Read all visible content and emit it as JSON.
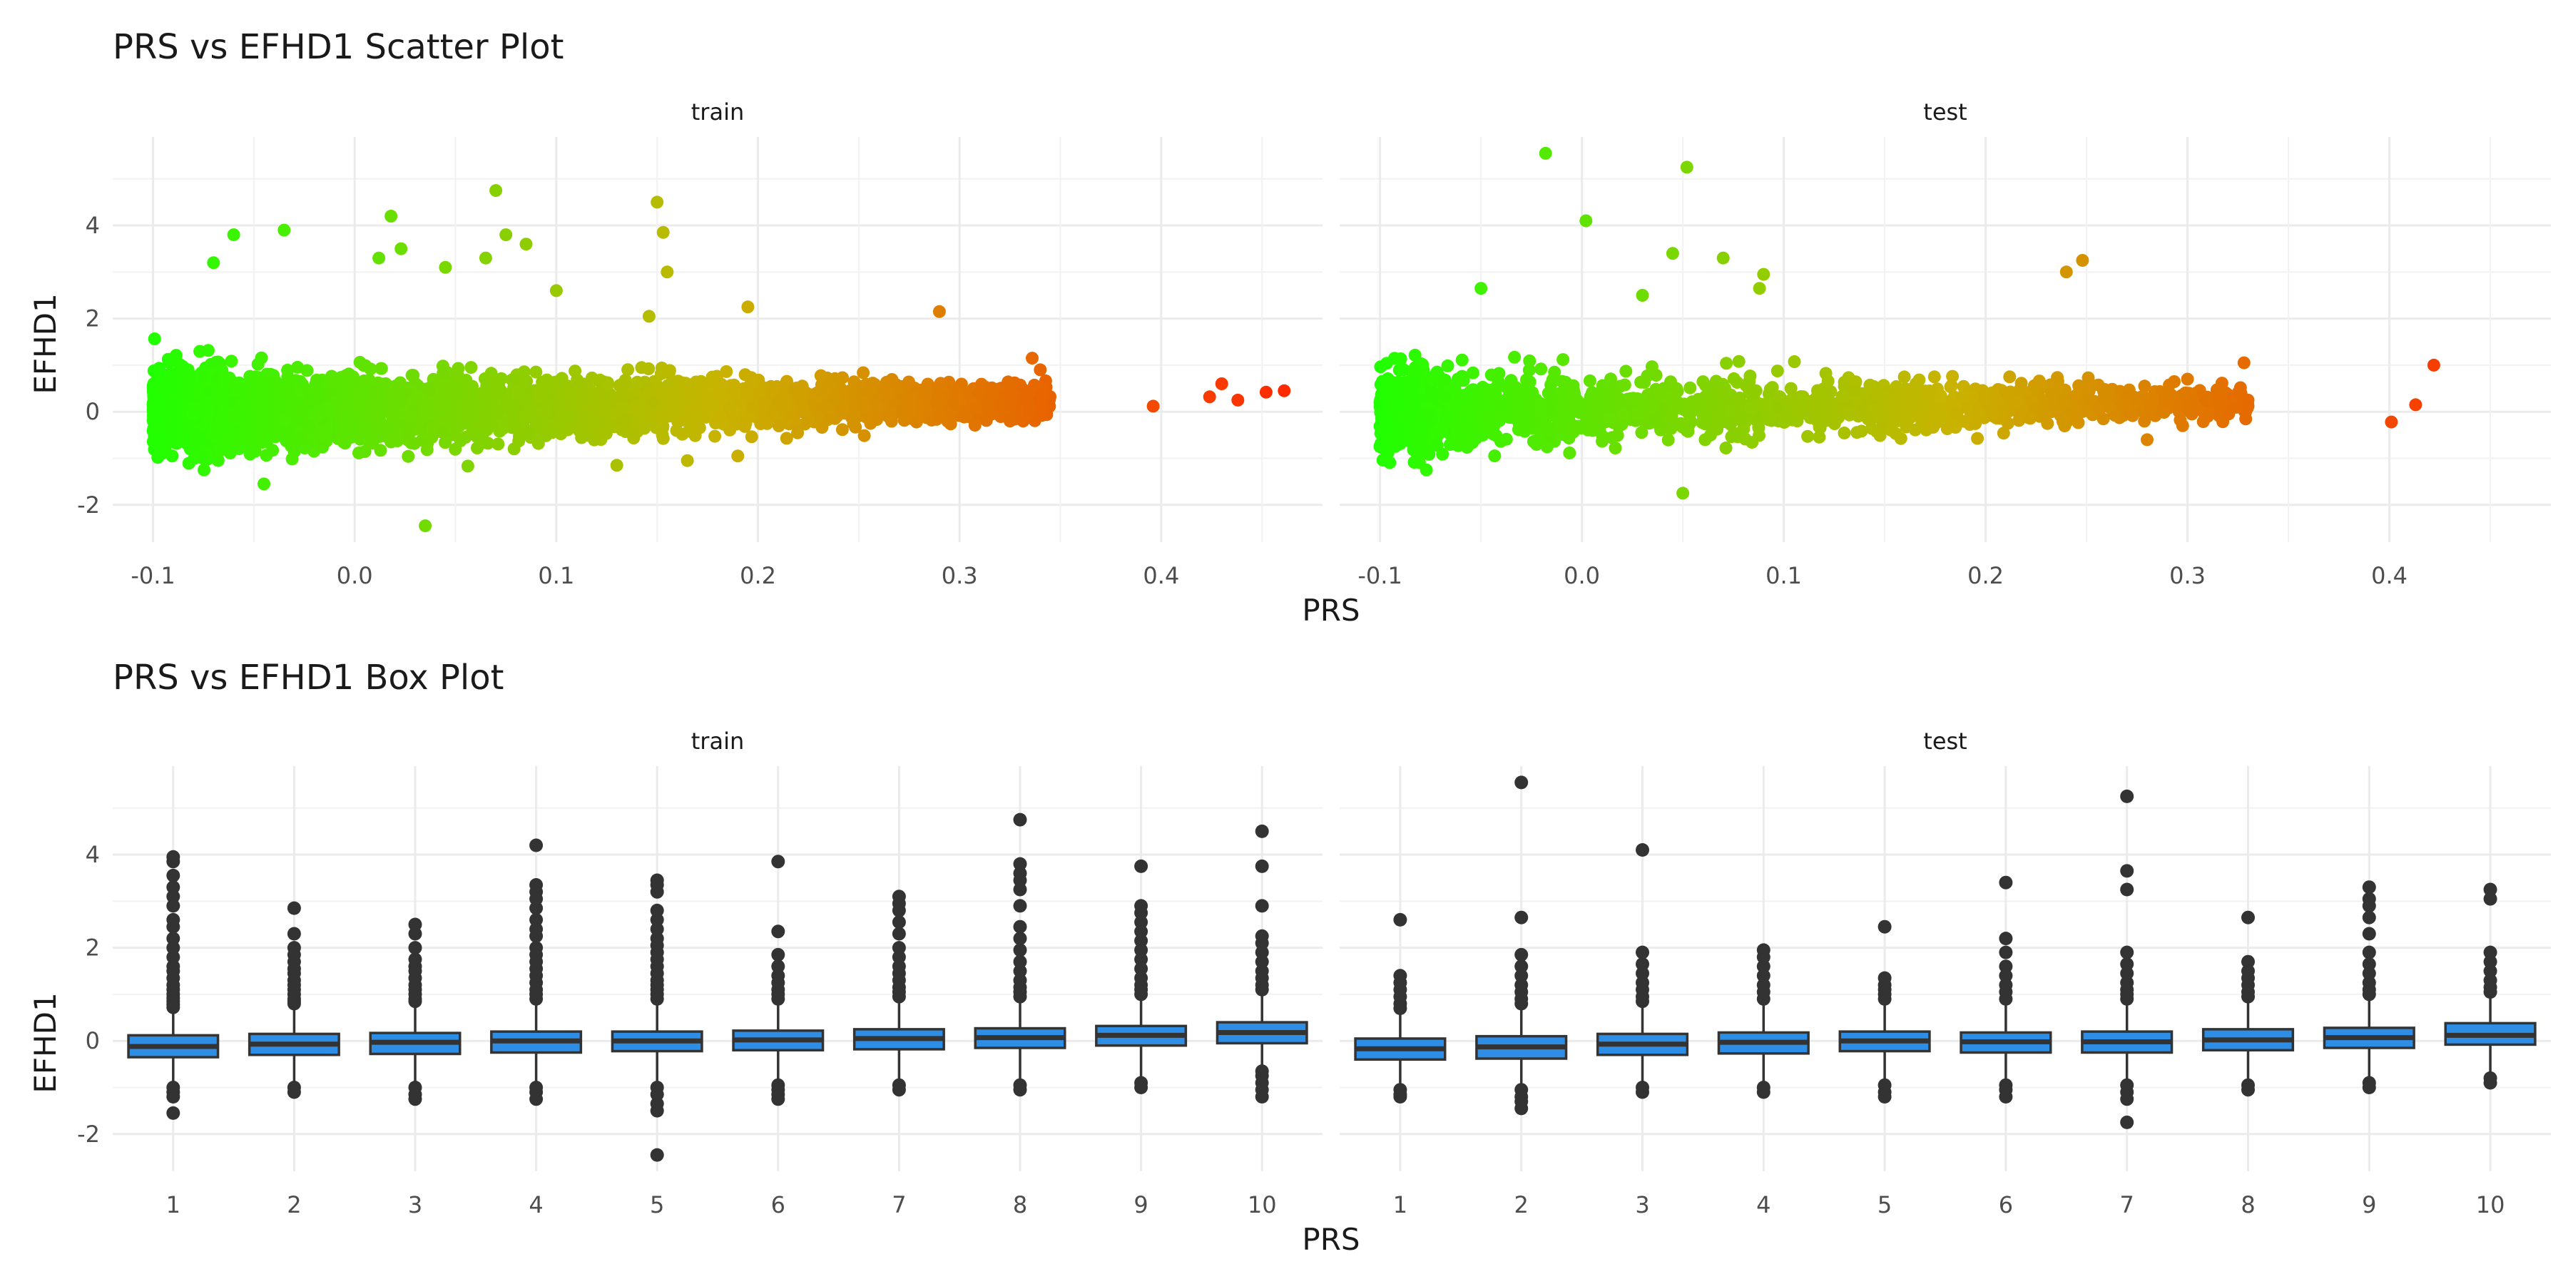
{
  "chart_data": [
    {
      "type": "scatter",
      "title": "PRS vs EFHD1 Scatter Plot",
      "xlabel": "PRS",
      "ylabel": "EFHD1",
      "xlim": [
        -0.12,
        0.48
      ],
      "ylim": [
        -2.8,
        5.9
      ],
      "xticks": [
        -0.1,
        0.0,
        0.1,
        0.2,
        0.3,
        0.4
      ],
      "xtick_labels": [
        "-0.1",
        "0.0",
        "0.1",
        "0.2",
        "0.3",
        "0.4"
      ],
      "yticks": [
        -2,
        0,
        2,
        4
      ],
      "ytick_labels": [
        "-2",
        "0",
        "2",
        "4"
      ],
      "grid": true,
      "legend": "none",
      "color_scale": {
        "low": "#22ff00",
        "mid": "#c8b400",
        "high": "#ff2a00"
      },
      "facets": [
        {
          "label": "train",
          "n_bulk": 3800,
          "bulk_x_range": [
            -0.1,
            0.345
          ],
          "points": [
            {
              "x": 0.035,
              "y": -2.45
            },
            {
              "x": 0.07,
              "y": 4.75
            },
            {
              "x": 0.15,
              "y": 4.5
            },
            {
              "x": 0.018,
              "y": 4.2
            },
            {
              "x": -0.035,
              "y": 3.9
            },
            {
              "x": -0.06,
              "y": 3.8
            },
            {
              "x": 0.075,
              "y": 3.8
            },
            {
              "x": 0.153,
              "y": 3.85
            },
            {
              "x": 0.085,
              "y": 3.6
            },
            {
              "x": 0.023,
              "y": 3.5
            },
            {
              "x": 0.065,
              "y": 3.3
            },
            {
              "x": 0.012,
              "y": 3.3
            },
            {
              "x": -0.07,
              "y": 3.2
            },
            {
              "x": 0.155,
              "y": 3.0
            },
            {
              "x": 0.045,
              "y": 3.1
            },
            {
              "x": 0.1,
              "y": 2.6
            },
            {
              "x": 0.195,
              "y": 2.25
            },
            {
              "x": 0.29,
              "y": 2.15
            },
            {
              "x": 0.146,
              "y": 2.05
            },
            {
              "x": -0.045,
              "y": -1.55
            },
            {
              "x": 0.13,
              "y": -1.15
            },
            {
              "x": 0.165,
              "y": -1.05
            },
            {
              "x": 0.19,
              "y": -0.95
            },
            {
              "x": 0.325,
              "y": -0.2
            },
            {
              "x": 0.34,
              "y": 0.9
            },
            {
              "x": 0.336,
              "y": 1.15
            },
            {
              "x": 0.396,
              "y": 0.12
            },
            {
              "x": 0.43,
              "y": 0.6
            },
            {
              "x": 0.424,
              "y": 0.32
            },
            {
              "x": 0.438,
              "y": 0.25
            },
            {
              "x": 0.452,
              "y": 0.42
            },
            {
              "x": 0.461,
              "y": 0.45
            }
          ]
        },
        {
          "label": "test",
          "n_bulk": 1700,
          "bulk_x_range": [
            -0.1,
            0.33
          ],
          "points": [
            {
              "x": -0.018,
              "y": 5.55
            },
            {
              "x": 0.052,
              "y": 5.25
            },
            {
              "x": 0.002,
              "y": 4.1
            },
            {
              "x": 0.09,
              "y": 2.95
            },
            {
              "x": 0.088,
              "y": 2.65
            },
            {
              "x": 0.248,
              "y": 3.25
            },
            {
              "x": 0.24,
              "y": 3.0
            },
            {
              "x": 0.07,
              "y": 3.3
            },
            {
              "x": 0.045,
              "y": 3.4
            },
            {
              "x": -0.05,
              "y": 2.65
            },
            {
              "x": 0.03,
              "y": 2.5
            },
            {
              "x": -0.1,
              "y": -0.75
            },
            {
              "x": -0.1,
              "y": 0.2
            },
            {
              "x": 0.05,
              "y": -1.75
            },
            {
              "x": 0.328,
              "y": 1.05
            },
            {
              "x": 0.33,
              "y": 0.25
            },
            {
              "x": 0.31,
              "y": -0.1
            },
            {
              "x": 0.3,
              "y": 0.7
            },
            {
              "x": 0.28,
              "y": -0.6
            },
            {
              "x": 0.401,
              "y": -0.22
            },
            {
              "x": 0.413,
              "y": 0.15
            },
            {
              "x": 0.422,
              "y": 1.0
            }
          ]
        }
      ]
    },
    {
      "type": "box",
      "title": "PRS vs EFHD1 Box Plot",
      "xlabel": "PRS",
      "ylabel": "EFHD1",
      "categories": [
        "1",
        "2",
        "3",
        "4",
        "5",
        "6",
        "7",
        "8",
        "9",
        "10"
      ],
      "ylim": [
        -2.8,
        5.9
      ],
      "yticks": [
        -2,
        0,
        2,
        4
      ],
      "ytick_labels": [
        "-2",
        "0",
        "2",
        "4"
      ],
      "grid": true,
      "box_fill": "#2e8ee6",
      "box_line": "#333333",
      "facets": [
        {
          "label": "train",
          "boxes": [
            {
              "q1": -0.35,
              "median": -0.12,
              "q3": 0.12,
              "whisker_low": -0.95,
              "whisker_high": 0.65,
              "outliers": [
                0.72,
                0.78,
                0.85,
                0.92,
                1.0,
                1.1,
                1.2,
                1.35,
                1.5,
                1.6,
                1.8,
                2.0,
                2.2,
                2.45,
                2.6,
                2.9,
                3.1,
                3.3,
                3.55,
                3.85,
                3.95,
                -1.0,
                -1.1,
                -1.2,
                -1.55
              ]
            },
            {
              "q1": -0.3,
              "median": -0.07,
              "q3": 0.15,
              "whisker_low": -0.95,
              "whisker_high": 0.75,
              "outliers": [
                0.8,
                0.85,
                0.9,
                1.0,
                1.1,
                1.2,
                1.3,
                1.45,
                1.55,
                1.7,
                1.85,
                2.0,
                2.3,
                2.85,
                -1.0,
                -1.1
              ]
            },
            {
              "q1": -0.28,
              "median": -0.03,
              "q3": 0.17,
              "whisker_low": -0.95,
              "whisker_high": 0.8,
              "outliers": [
                0.85,
                0.9,
                1.0,
                1.1,
                1.2,
                1.35,
                1.5,
                1.6,
                1.75,
                2.0,
                2.3,
                2.5,
                -1.0,
                -1.15,
                -1.25
              ]
            },
            {
              "q1": -0.25,
              "median": 0.0,
              "q3": 0.2,
              "whisker_low": -0.9,
              "whisker_high": 0.85,
              "outliers": [
                0.9,
                1.0,
                1.1,
                1.25,
                1.4,
                1.55,
                1.7,
                1.85,
                2.0,
                2.25,
                2.4,
                2.6,
                2.85,
                3.05,
                3.2,
                3.35,
                4.2,
                -1.0,
                -1.1,
                -1.25
              ]
            },
            {
              "q1": -0.22,
              "median": 0.0,
              "q3": 0.2,
              "whisker_low": -0.9,
              "whisker_high": 0.85,
              "outliers": [
                0.9,
                1.0,
                1.1,
                1.2,
                1.3,
                1.45,
                1.6,
                1.75,
                1.9,
                2.05,
                2.2,
                2.4,
                2.6,
                2.8,
                3.2,
                3.35,
                3.45,
                -1.0,
                -1.15,
                -1.35,
                -1.5,
                -2.45
              ]
            },
            {
              "q1": -0.2,
              "median": 0.02,
              "q3": 0.22,
              "whisker_low": -0.9,
              "whisker_high": 0.85,
              "outliers": [
                0.9,
                1.0,
                1.1,
                1.25,
                1.4,
                1.6,
                1.85,
                2.35,
                3.85,
                -0.95,
                -1.05,
                -1.15,
                -1.25
              ]
            },
            {
              "q1": -0.18,
              "median": 0.05,
              "q3": 0.25,
              "whisker_low": -0.85,
              "whisker_high": 0.9,
              "outliers": [
                0.95,
                1.05,
                1.15,
                1.3,
                1.45,
                1.6,
                1.8,
                2.0,
                2.3,
                2.55,
                2.8,
                2.95,
                3.1,
                -0.95,
                -1.05
              ]
            },
            {
              "q1": -0.15,
              "median": 0.07,
              "q3": 0.27,
              "whisker_low": -0.85,
              "whisker_high": 0.9,
              "outliers": [
                0.95,
                1.05,
                1.15,
                1.3,
                1.5,
                1.7,
                1.95,
                2.2,
                2.45,
                2.9,
                3.25,
                3.45,
                3.6,
                3.8,
                4.75,
                -0.95,
                -1.05
              ]
            },
            {
              "q1": -0.1,
              "median": 0.12,
              "q3": 0.32,
              "whisker_low": -0.8,
              "whisker_high": 0.95,
              "outliers": [
                1.0,
                1.1,
                1.2,
                1.35,
                1.55,
                1.75,
                1.95,
                2.15,
                2.35,
                2.55,
                2.75,
                2.9,
                3.75,
                -0.9,
                -1.0
              ]
            },
            {
              "q1": -0.05,
              "median": 0.18,
              "q3": 0.4,
              "whisker_low": -0.6,
              "whisker_high": 1.05,
              "outliers": [
                1.1,
                1.2,
                1.35,
                1.5,
                1.7,
                1.9,
                2.1,
                2.25,
                2.9,
                3.75,
                4.5,
                -0.65,
                -0.75,
                -0.9,
                -1.05,
                -1.2
              ]
            }
          ]
        },
        {
          "label": "test",
          "boxes": [
            {
              "q1": -0.4,
              "median": -0.17,
              "q3": 0.05,
              "whisker_low": -1.0,
              "whisker_high": 0.65,
              "outliers": [
                0.7,
                0.8,
                0.95,
                1.1,
                1.25,
                1.4,
                2.6,
                -1.05,
                -1.15,
                -1.2
              ]
            },
            {
              "q1": -0.38,
              "median": -0.13,
              "q3": 0.1,
              "whisker_low": -1.0,
              "whisker_high": 0.75,
              "outliers": [
                0.8,
                0.9,
                1.05,
                1.2,
                1.4,
                1.6,
                1.85,
                2.65,
                5.55,
                -1.05,
                -1.2,
                -1.3,
                -1.45
              ]
            },
            {
              "q1": -0.3,
              "median": -0.07,
              "q3": 0.15,
              "whisker_low": -0.95,
              "whisker_high": 0.8,
              "outliers": [
                0.85,
                0.95,
                1.1,
                1.25,
                1.45,
                1.65,
                1.9,
                4.1,
                -1.0,
                -1.1
              ]
            },
            {
              "q1": -0.27,
              "median": -0.03,
              "q3": 0.18,
              "whisker_low": -0.95,
              "whisker_high": 0.85,
              "outliers": [
                0.9,
                1.05,
                1.2,
                1.4,
                1.6,
                1.8,
                1.95,
                -1.0,
                -1.1
              ]
            },
            {
              "q1": -0.22,
              "median": 0.0,
              "q3": 0.2,
              "whisker_low": -0.9,
              "whisker_high": 0.85,
              "outliers": [
                0.9,
                1.0,
                1.1,
                1.2,
                1.35,
                2.45,
                -0.95,
                -1.1,
                -1.2
              ]
            },
            {
              "q1": -0.25,
              "median": -0.02,
              "q3": 0.18,
              "whisker_low": -0.9,
              "whisker_high": 0.85,
              "outliers": [
                0.9,
                1.05,
                1.2,
                1.4,
                1.6,
                1.9,
                2.2,
                3.4,
                -0.95,
                -1.05,
                -1.2
              ]
            },
            {
              "q1": -0.25,
              "median": -0.02,
              "q3": 0.2,
              "whisker_low": -0.9,
              "whisker_high": 0.85,
              "outliers": [
                0.9,
                1.0,
                1.1,
                1.25,
                1.45,
                1.65,
                1.9,
                3.25,
                3.65,
                5.25,
                -0.95,
                -1.1,
                -1.25,
                -1.75
              ]
            },
            {
              "q1": -0.2,
              "median": 0.02,
              "q3": 0.25,
              "whisker_low": -0.85,
              "whisker_high": 0.9,
              "outliers": [
                0.95,
                1.05,
                1.2,
                1.35,
                1.5,
                1.7,
                2.65,
                -0.95,
                -1.05
              ]
            },
            {
              "q1": -0.15,
              "median": 0.07,
              "q3": 0.28,
              "whisker_low": -0.85,
              "whisker_high": 0.95,
              "outliers": [
                1.0,
                1.1,
                1.25,
                1.45,
                1.65,
                1.9,
                2.3,
                2.65,
                2.9,
                3.05,
                3.3,
                -0.9,
                -1.0
              ]
            },
            {
              "q1": -0.08,
              "median": 0.12,
              "q3": 0.38,
              "whisker_low": -0.75,
              "whisker_high": 1.0,
              "outliers": [
                1.05,
                1.15,
                1.3,
                1.5,
                1.7,
                1.9,
                3.05,
                3.25,
                -0.8,
                -0.9
              ]
            }
          ]
        }
      ]
    }
  ]
}
